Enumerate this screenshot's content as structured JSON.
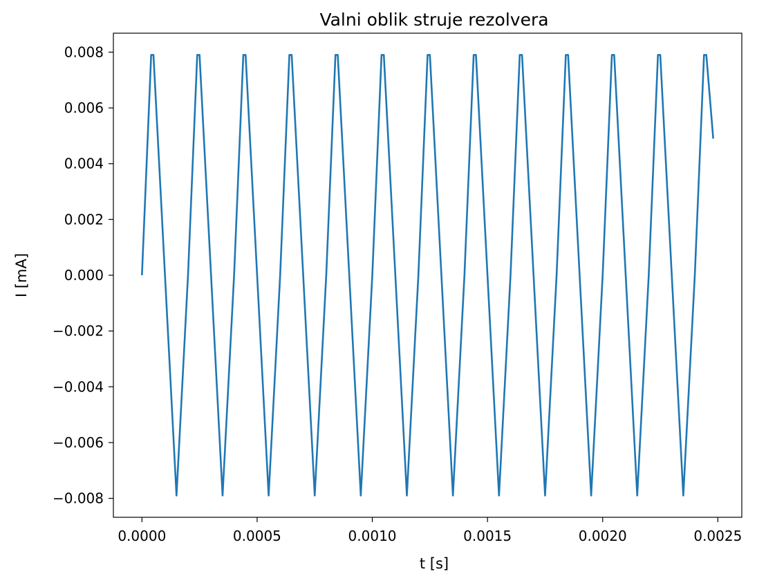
{
  "chart_data": {
    "type": "line",
    "title": "Valni oblik struje rezolvera",
    "xlabel": "t [s]",
    "ylabel": "I [mA]",
    "xlim": [
      -0.000124,
      0.002604
    ],
    "ylim": [
      -0.00868,
      0.00868
    ],
    "xticks": [
      0.0,
      0.0005,
      0.001,
      0.0015,
      0.002,
      0.0025
    ],
    "xtick_labels": [
      "0.0000",
      "0.0005",
      "0.0010",
      "0.0015",
      "0.0020",
      "0.0025"
    ],
    "yticks": [
      -0.008,
      -0.006,
      -0.004,
      -0.002,
      0.0,
      0.002,
      0.004,
      0.006,
      0.008
    ],
    "ytick_labels": [
      "−0.008",
      "−0.006",
      "−0.004",
      "−0.002",
      "0.000",
      "0.002",
      "0.004",
      "0.006",
      "0.008"
    ],
    "grid": false,
    "series": [
      {
        "color": "#1f77b4",
        "x": [
          0,
          4e-05,
          5e-05,
          0.0001,
          0.00015,
          0.0002,
          0.00024,
          0.00025,
          0.0003,
          0.00035,
          0.0004,
          0.00044,
          0.00045,
          0.0005,
          0.00055,
          0.0006,
          0.00064,
          0.00065,
          0.0007,
          0.00075,
          0.0008,
          0.00084,
          0.00085,
          0.0009,
          0.00095,
          0.001,
          0.00104,
          0.00105,
          0.0011,
          0.00115,
          0.0012,
          0.00124,
          0.00125,
          0.0013,
          0.00135,
          0.0014,
          0.00144,
          0.00145,
          0.0015,
          0.00155,
          0.0016,
          0.00164,
          0.00165,
          0.0017,
          0.00175,
          0.0018,
          0.00184,
          0.00185,
          0.0019,
          0.00195,
          0.002,
          0.00204,
          0.00205,
          0.0021,
          0.00215,
          0.0022,
          0.00224,
          0.00225,
          0.0023,
          0.00235,
          0.0024,
          0.00244,
          0.00245,
          0.00248
        ],
        "y": [
          0,
          0.0079,
          0.0079,
          0,
          -0.0079,
          0,
          0.0079,
          0.0079,
          0,
          -0.0079,
          0,
          0.0079,
          0.0079,
          0,
          -0.0079,
          0,
          0.0079,
          0.0079,
          0,
          -0.0079,
          0,
          0.0079,
          0.0079,
          0,
          -0.0079,
          0,
          0.0079,
          0.0079,
          0,
          -0.0079,
          0,
          0.0079,
          0.0079,
          0,
          -0.0079,
          0,
          0.0079,
          0.0079,
          0,
          -0.0079,
          0,
          0.0079,
          0.0079,
          0,
          -0.0079,
          0,
          0.0079,
          0.0079,
          0,
          -0.0079,
          0,
          0.0079,
          0.0079,
          0,
          -0.0079,
          0,
          0.0079,
          0.0079,
          0,
          -0.0079,
          0,
          0.0079,
          0.0079,
          0.0049
        ]
      }
    ]
  }
}
